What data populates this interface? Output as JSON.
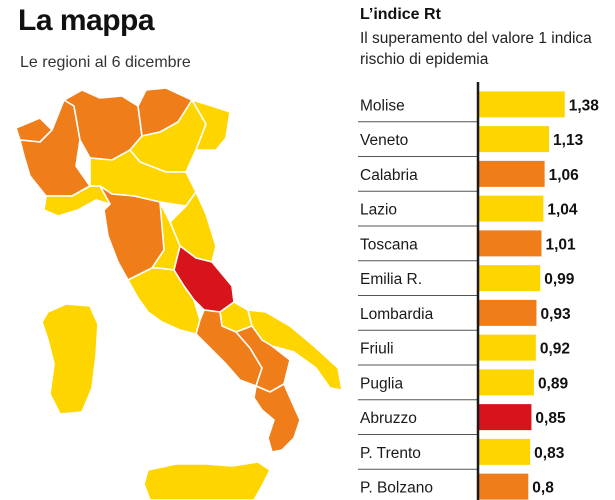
{
  "map": {
    "title": "La mappa",
    "subtitle": "Le regioni al 6 dicembre"
  },
  "colors": {
    "yellow": "#ffd500",
    "orange": "#ee7d1a",
    "red": "#d7141b",
    "separator": "#555555",
    "axis": "#1a1a1a",
    "region_border": "#ffffff"
  },
  "chart_data": {
    "type": "bar",
    "orientation": "horizontal",
    "title": "L’indice Rt",
    "subtitle": "Il superamento del valore 1 indica rischio di epidemia",
    "categories": [
      "Molise",
      "Veneto",
      "Calabria",
      "Lazio",
      "Toscana",
      "Emilia R.",
      "Lombardia",
      "Friuli",
      "Puglia",
      "Abruzzo",
      "P. Trento",
      "P. Bolzano"
    ],
    "values": [
      1.38,
      1.13,
      1.06,
      1.04,
      1.01,
      0.99,
      0.93,
      0.92,
      0.89,
      0.85,
      0.83,
      0.8
    ],
    "value_labels": [
      "1,38",
      "1,13",
      "1,06",
      "1,04",
      "1,01",
      "0,99",
      "0,93",
      "0,92",
      "0,89",
      "0,85",
      "0,83",
      "0,8"
    ],
    "bar_colors": [
      "yellow",
      "yellow",
      "orange",
      "yellow",
      "orange",
      "yellow",
      "orange",
      "yellow",
      "yellow",
      "red",
      "yellow",
      "orange"
    ],
    "xlim": [
      0,
      1.4
    ],
    "grid": false,
    "legend": "none"
  }
}
